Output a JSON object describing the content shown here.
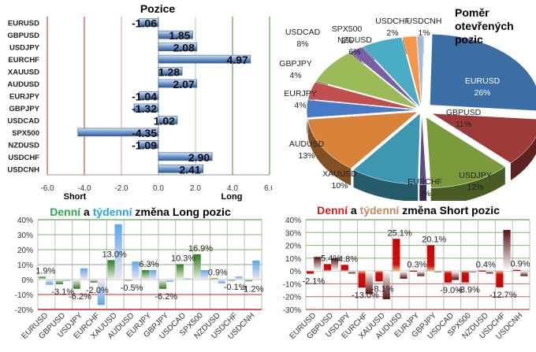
{
  "chart_data": [
    {
      "id": "positions",
      "type": "bar",
      "orientation": "horizontal",
      "title": "Pozice",
      "categories": [
        "EURUSD",
        "GBPUSD",
        "USDJPY",
        "EURCHF",
        "XAUUSD",
        "AUDUSD",
        "EURJPY",
        "GBPJPY",
        "USDCAD",
        "SPX500",
        "NZDUSD",
        "USDCHF",
        "USDCNH"
      ],
      "values": [
        -1.06,
        1.85,
        2.08,
        4.97,
        1.28,
        2.07,
        -1.04,
        -1.32,
        1.02,
        -4.35,
        -1.09,
        2.9,
        2.41
      ],
      "data_labels": [
        "-1.06",
        "1.85",
        "2.08",
        "4.97",
        "1.28",
        "2.07",
        "-1.04",
        "-1.32",
        "1.02",
        "-4.35",
        "-1.09",
        "2.90",
        "2.41"
      ],
      "xlim": [
        -6.0,
        6.0
      ],
      "x_ticks": [
        "-6.0",
        "-4.0",
        "-2.0",
        "0.0",
        "2.0",
        "4.0",
        "6.0"
      ],
      "axis_annotations": {
        "short": "Short",
        "long": "Long"
      },
      "grid": true,
      "colors": {
        "bar": "#4f7bb5",
        "short_grid": "#c0504d",
        "long_grid": "#5ea35a"
      }
    },
    {
      "id": "open-positions-ratio",
      "type": "pie",
      "title_lines": [
        "Poměr",
        "otevřených",
        "pozic"
      ],
      "slices": [
        {
          "label": "EURUSD",
          "value": 26,
          "text": "26%",
          "color": "#3a6ea5"
        },
        {
          "label": "GBPUSD",
          "value": 11,
          "text": "11%",
          "color": "#9b3a37"
        },
        {
          "label": "USDJPY",
          "value": 12,
          "text": "12%",
          "color": "#7a9a3c"
        },
        {
          "label": "EURCHF",
          "value": 1,
          "text": "1%",
          "color": "#5d4a8a"
        },
        {
          "label": "XAUUSD",
          "value": 10,
          "text": "10%",
          "color": "#3d97b0"
        },
        {
          "label": "AUDUSD",
          "value": 13,
          "text": "13%",
          "color": "#d9833a"
        },
        {
          "label": "EURJPY",
          "value": 4,
          "text": "4%",
          "color": "#4779c4"
        },
        {
          "label": "GBPJPY",
          "value": 4,
          "text": "4%",
          "color": "#c0504d"
        },
        {
          "label": "USDCAD",
          "value": 8,
          "text": "8%",
          "color": "#9bbb59"
        },
        {
          "label": "SPX500",
          "value": 2,
          "text": "2%",
          "color": "#7b5ea7"
        },
        {
          "label": "NZDUSD",
          "value": 6,
          "text": "6%",
          "color": "#4bacc6"
        },
        {
          "label": "USDCHF",
          "value": 2,
          "text": "2%",
          "color": "#f79646"
        },
        {
          "label": "USDCNH",
          "value": 1,
          "text": "1%",
          "color": "#a5b9dc"
        }
      ]
    },
    {
      "id": "long-changes",
      "type": "bar",
      "title_parts": [
        {
          "text": "Denní",
          "color": "#2aa84a"
        },
        {
          "text": " a ",
          "color": "#000000"
        },
        {
          "text": "týdenní",
          "color": "#2aa0e0"
        },
        {
          "text": " změna Long pozic",
          "color": "#000000"
        }
      ],
      "categories": [
        "EURUSD",
        "GBPUSD",
        "USDJPY",
        "EURCHF",
        "XAUUSD",
        "AUDUSD",
        "EURJPY",
        "GBPJPY",
        "USDCAD",
        "SPX500",
        "NZDUSD",
        "USDCHF",
        "USDCNH"
      ],
      "series": [
        {
          "name": "Denní",
          "color": "#2e7d23",
          "values": [
            1.9,
            -3.1,
            -6.2,
            -2.0,
            13.0,
            -0.5,
            6.3,
            -6.2,
            10.3,
            16.9,
            0.9,
            -0.1,
            -1.2
          ],
          "labels": [
            "1.9%",
            "-3.1%",
            "-6.2%",
            "-2.0%",
            "13.0%",
            "-0.5%",
            "6.3%",
            "-6.2%",
            "10.3%",
            "16.9%",
            "0.9%",
            "-0.1%",
            "-1.2%"
          ]
        },
        {
          "name": "Týdenní",
          "color": "#5aa6f0",
          "values": [
            -3.5,
            -1.0,
            7.5,
            -17.0,
            37.0,
            12.0,
            6.3,
            -1.5,
            0.8,
            6.3,
            -2.5,
            2.0,
            12.7
          ]
        }
      ],
      "ylim": [
        -20,
        40
      ],
      "y_ticks": [
        "40%",
        "30%",
        "20%",
        "10%",
        "0%",
        "-10%",
        "-20%"
      ],
      "grid": true
    },
    {
      "id": "short-changes",
      "type": "bar",
      "title_parts": [
        {
          "text": "Denní",
          "color": "#e01818"
        },
        {
          "text": " a ",
          "color": "#000000"
        },
        {
          "text": "týdenní",
          "color": "#c8865a"
        },
        {
          "text": " změna Short pozic",
          "color": "#000000"
        }
      ],
      "categories": [
        "EURUSD",
        "GBPUSD",
        "USDJPY",
        "EURCHF",
        "XAUUSD",
        "AUDUSD",
        "EURJPY",
        "GBPJPY",
        "USDCAD",
        "SPX500",
        "NZDUSD",
        "USDCHF",
        "USDCNH"
      ],
      "series": [
        {
          "name": "Denní",
          "color": "#cc0000",
          "values": [
            -2.1,
            5.4,
            4.8,
            -13.0,
            -8.1,
            25.1,
            0.3,
            20.1,
            -9.0,
            -8.9,
            0.4,
            -12.7,
            0.9
          ],
          "labels": [
            "-2.1%",
            "5.4%",
            "4.8%",
            "-13.0%",
            "-8.1%",
            "25.1%",
            "0.3%",
            "20.1%",
            "-9.0%",
            "-8.9%",
            "0.4%",
            "-12.7%",
            "0.9%"
          ]
        },
        {
          "name": "Týdenní",
          "color": "#5a1010",
          "values": [
            11.0,
            10.0,
            -2.0,
            -18.0,
            -22.0,
            -6.0,
            -4.0,
            -0.5,
            -7.0,
            -0.3,
            -2.0,
            32.0,
            -4.0
          ]
        }
      ],
      "ylim": [
        -30,
        40
      ],
      "y_ticks": [
        "40%",
        "30%",
        "20%",
        "10%",
        "0%",
        "-10%",
        "-20%",
        "-30%"
      ],
      "grid": true
    }
  ]
}
